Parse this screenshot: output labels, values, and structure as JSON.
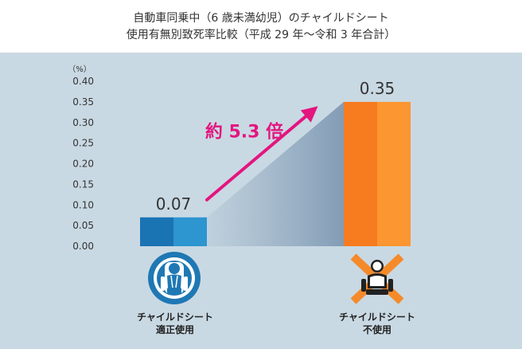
{
  "title_lines": [
    "自動車同乗中（6 歳未満幼児）のチャイルドシート",
    "使用有無別致死率比較（平成 29 年〜令和 3 年合計）"
  ],
  "chart_data": {
    "type": "bar",
    "title": "自動車同乗中（6 歳未満幼児）のチャイルドシート 使用有無別致死率比較（平成 29 年〜令和 3 年合計）",
    "unit_label": "（%）",
    "ylim": [
      0,
      0.4
    ],
    "yticks": [
      "0.00",
      "0.05",
      "0.10",
      "0.15",
      "0.20",
      "0.25",
      "0.30",
      "0.35",
      "0.40"
    ],
    "grid": false,
    "categories": [
      [
        "チャイルドシート",
        "適正使用"
      ],
      [
        "チャイルドシート",
        "不使用"
      ]
    ],
    "values": [
      0.07,
      0.35
    ],
    "value_labels": [
      "0.07",
      "0.35"
    ],
    "annotation": "約 5.3 倍",
    "colors": {
      "bar1_dark": "#1a73b3",
      "bar1_light": "#2d95d0",
      "bar2_dark": "#f77b1f",
      "bar2_light": "#fb9630",
      "arrow": "#e3157f",
      "panel_bg": "#c9d9e3",
      "icon_circle": "#1f78b4",
      "icon_cross": "#f58a2a"
    },
    "icons": [
      "child-seat-in-use-icon",
      "child-seat-not-used-icon"
    ]
  }
}
